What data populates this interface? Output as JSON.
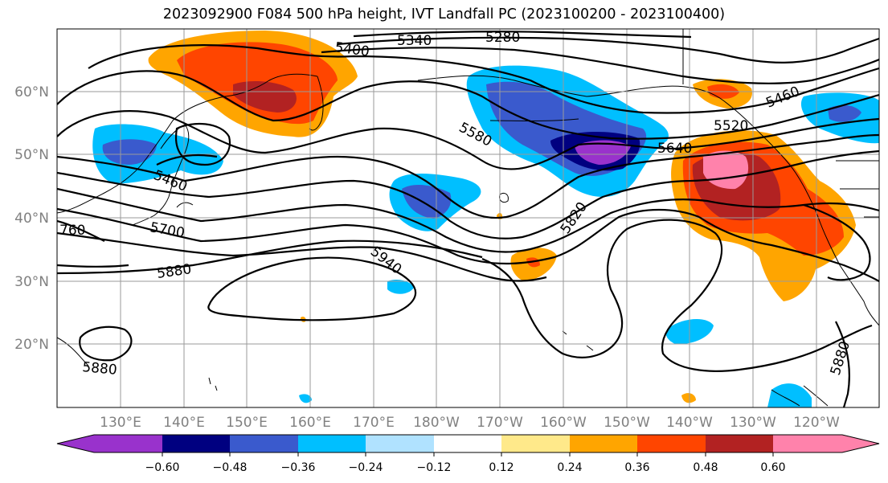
{
  "title": "2023092900 F084 500 hPa height, IVT Landfall PC (2023100200 - 2023100400)",
  "lat_labels": [
    "60°N",
    "50°N",
    "40°N",
    "30°N",
    "20°N"
  ],
  "lon_labels": [
    "130°E",
    "140°E",
    "150°E",
    "160°E",
    "170°E",
    "180°W",
    "170°W",
    "160°W",
    "150°W",
    "140°W",
    "130°W",
    "120°W"
  ],
  "contour_labels": [
    "5400",
    "5340",
    "5280",
    "5460",
    "5580",
    "5640",
    "5520",
    "5460",
    "5700",
    "5820",
    "5880",
    "5940",
    "5880",
    "5880",
    "760"
  ],
  "colorbar": {
    "ticks": [
      "−0.60",
      "−0.48",
      "−0.36",
      "−0.24",
      "−0.12",
      "0.12",
      "0.24",
      "0.36",
      "0.48",
      "0.60"
    ],
    "colors": [
      "#9932cc",
      "#000080",
      "#3a5acd",
      "#00bfff",
      "#b0e2ff",
      "#ffffff",
      "#ffe98a",
      "#ffa500",
      "#ff4500",
      "#b22222",
      "#ff82ab",
      "#ff82ab"
    ]
  }
}
